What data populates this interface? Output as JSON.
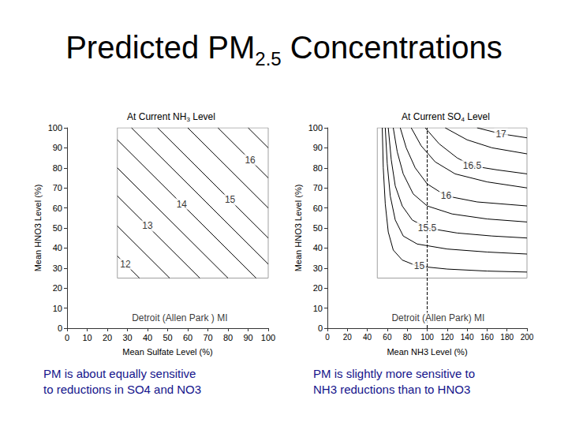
{
  "title": "Predicted PM2.5 Concentrations",
  "chart_data": [
    {
      "type": "line",
      "title": "At Current NH3 Level",
      "x_label": "Mean Sulfate Level (%)",
      "y_label": "Mean HNO3 Level (%)",
      "xlim": [
        0,
        100
      ],
      "xticks": [
        0,
        10,
        20,
        30,
        40,
        50,
        60,
        70,
        80,
        90,
        100
      ],
      "ylim": [
        0,
        100
      ],
      "yticks": [
        0,
        10,
        20,
        30,
        40,
        50,
        60,
        70,
        80,
        90,
        100
      ],
      "grid": false,
      "series": [
        {
          "color": "#a0a0a0",
          "values": [
            [
              25,
              25
            ],
            [
              25,
              100
            ],
            [
              100,
              100
            ],
            [
              100,
              25
            ],
            [
              25,
              25
            ]
          ]
        },
        {
          "color": "#000000",
          "values": [
            [
              25,
              36
            ],
            [
              36,
              25
            ]
          ]
        },
        {
          "color": "#000000",
          "values": [
            [
              25,
              51
            ],
            [
              51,
              25
            ]
          ]
        },
        {
          "color": "#000000",
          "values": [
            [
              25,
              66
            ],
            [
              66,
              25
            ]
          ]
        },
        {
          "color": "#000000",
          "values": [
            [
              25,
              80
            ],
            [
              80,
              25
            ]
          ]
        },
        {
          "color": "#000000",
          "values": [
            [
              25,
              94
            ],
            [
              94,
              25
            ]
          ]
        },
        {
          "color": "#000000",
          "values": [
            [
              32,
              100
            ],
            [
              100,
              32
            ]
          ]
        },
        {
          "color": "#000000",
          "values": [
            [
              45,
              100
            ],
            [
              100,
              45
            ]
          ]
        },
        {
          "color": "#000000",
          "values": [
            [
              60,
              100
            ],
            [
              100,
              60
            ]
          ]
        },
        {
          "color": "#000000",
          "values": [
            [
              75,
              100
            ],
            [
              100,
              75
            ]
          ]
        },
        {
          "color": "#000000",
          "values": [
            [
              90,
              100
            ],
            [
              100,
              90
            ]
          ]
        }
      ],
      "annotations": [
        {
          "text": "12",
          "x": 29,
          "y": 32
        },
        {
          "text": "13",
          "x": 40,
          "y": 51
        },
        {
          "text": "14",
          "x": 57,
          "y": 62
        },
        {
          "text": "15",
          "x": 81,
          "y": 64
        },
        {
          "text": "16",
          "x": 91,
          "y": 84
        },
        {
          "text": "Detroit (Allen Park ) MI",
          "x": 56,
          "y": 5
        }
      ],
      "caption": [
        "PM is about equally sensitive",
        "to reductions in SO4 and NO3"
      ]
    },
    {
      "type": "line",
      "title": "At Current SO4 Level",
      "x_label": "Mean NH3 Level (%)",
      "y_label": "Mean HNO3 Level (%)",
      "xlim": [
        0,
        200
      ],
      "xticks": [
        0,
        20,
        40,
        60,
        80,
        100,
        120,
        140,
        160,
        180,
        200
      ],
      "ylim": [
        0,
        100
      ],
      "yticks": [
        0,
        10,
        20,
        30,
        40,
        50,
        60,
        70,
        80,
        90,
        100
      ],
      "grid": false,
      "series": [
        {
          "color": "#a0a0a0",
          "values": [
            [
              50,
              25
            ],
            [
              50,
              100
            ],
            [
              200,
              100
            ],
            [
              200,
              25
            ],
            [
              50,
              25
            ]
          ]
        },
        {
          "color": "#000000",
          "line_style": "dashed",
          "values": [
            [
              100,
              0
            ],
            [
              100,
              100
            ]
          ]
        },
        {
          "color": "#000000",
          "values": [
            [
              55,
              100
            ],
            [
              56,
              80
            ],
            [
              58,
              62
            ],
            [
              61,
              48
            ],
            [
              66,
              39
            ],
            [
              75,
              34
            ],
            [
              90,
              31
            ],
            [
              120,
              29.5
            ],
            [
              160,
              28.5
            ],
            [
              200,
              28
            ]
          ]
        },
        {
          "color": "#000000",
          "values": [
            [
              58,
              100
            ],
            [
              60,
              82
            ],
            [
              63,
              66
            ],
            [
              68,
              54
            ],
            [
              76,
              46
            ],
            [
              90,
              42
            ],
            [
              120,
              39.5
            ],
            [
              160,
              38
            ],
            [
              200,
              37
            ]
          ]
        },
        {
          "color": "#000000",
          "values": [
            [
              61,
              100
            ],
            [
              64,
              84
            ],
            [
              68,
              71
            ],
            [
              75,
              61
            ],
            [
              85,
              54
            ],
            [
              100,
              50
            ],
            [
              130,
              47.5
            ],
            [
              165,
              46
            ],
            [
              200,
              45
            ]
          ]
        },
        {
          "color": "#000000",
          "values": [
            [
              66,
              100
            ],
            [
              70,
              88
            ],
            [
              76,
              77
            ],
            [
              86,
              67
            ],
            [
              100,
              61
            ],
            [
              125,
              57
            ],
            [
              160,
              54.5
            ],
            [
              200,
              53
            ]
          ]
        },
        {
          "color": "#000000",
          "values": [
            [
              73,
              100
            ],
            [
              79,
              90
            ],
            [
              88,
              80
            ],
            [
              100,
              72
            ],
            [
              119,
              66
            ],
            [
              150,
              63
            ],
            [
              200,
              61
            ]
          ]
        },
        {
          "color": "#000000",
          "values": [
            [
              84,
              100
            ],
            [
              94,
              91
            ],
            [
              108,
              83
            ],
            [
              128,
              77
            ],
            [
              160,
              73
            ],
            [
              200,
              70
            ]
          ]
        },
        {
          "color": "#000000",
          "values": [
            [
              98,
              100
            ],
            [
              112,
              92
            ],
            [
              130,
              85
            ],
            [
              145,
              81
            ],
            [
              170,
              79
            ],
            [
              200,
              77
            ]
          ]
        },
        {
          "color": "#000000",
          "values": [
            [
              118,
              100
            ],
            [
              140,
              94
            ],
            [
              165,
              90
            ],
            [
              200,
              87
            ]
          ]
        },
        {
          "color": "#000000",
          "values": [
            [
              150,
              100
            ],
            [
              174,
              97
            ],
            [
              200,
              95
            ]
          ]
        }
      ],
      "annotations": [
        {
          "text": "17",
          "x": 174,
          "y": 97
        },
        {
          "text": "16.5",
          "x": 145,
          "y": 81
        },
        {
          "text": "16",
          "x": 119,
          "y": 66
        },
        {
          "text": "15.5",
          "x": 100,
          "y": 50
        },
        {
          "text": "15",
          "x": 92,
          "y": 31
        },
        {
          "text": "Detroit (Allen Park) MI",
          "x": 111,
          "y": 5
        }
      ],
      "caption": [
        "PM is slightly more sensitive to",
        "NH3 reductions than to HNO3"
      ]
    }
  ]
}
